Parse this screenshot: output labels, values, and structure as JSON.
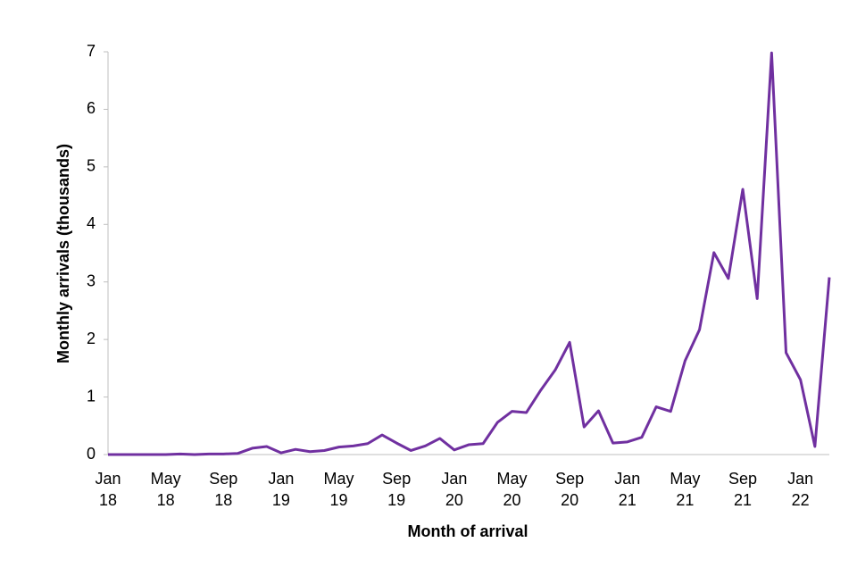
{
  "chart_data": {
    "type": "line",
    "x_label": "Month of arrival",
    "y_label": "Monthly arrivals (thousands)",
    "categories": [
      "Jan 18",
      null,
      null,
      null,
      "May 18",
      null,
      null,
      null,
      "Sep 18",
      null,
      null,
      null,
      "Jan 19",
      null,
      null,
      null,
      "May 19",
      null,
      null,
      null,
      "Sep 19",
      null,
      null,
      null,
      "Jan 20",
      null,
      null,
      null,
      "May 20",
      null,
      null,
      null,
      "Sep 20",
      null,
      null,
      null,
      "Jan 21",
      null,
      null,
      null,
      "May 21",
      null,
      null,
      null,
      "Sep 21",
      null,
      null,
      null,
      "Jan 22",
      null,
      null
    ],
    "series": [
      {
        "name": "Monthly arrivals",
        "color": "#7030a0",
        "values": [
          0,
          0,
          0,
          0,
          0,
          0.01,
          0,
          0.01,
          0.01,
          0.02,
          0.11,
          0.14,
          0.03,
          0.09,
          0.05,
          0.07,
          0.13,
          0.15,
          0.19,
          0.34,
          0.2,
          0.07,
          0.15,
          0.28,
          0.08,
          0.17,
          0.19,
          0.56,
          0.75,
          0.73,
          1.12,
          1.47,
          1.95,
          0.48,
          0.76,
          0.2,
          0.22,
          0.3,
          0.83,
          0.75,
          1.63,
          2.17,
          3.51,
          3.06,
          4.61,
          2.71,
          6.98,
          1.77,
          1.3,
          0.14,
          3.08
        ]
      }
    ],
    "ylim": [
      0,
      7
    ],
    "yticks": [
      0,
      1,
      2,
      3,
      4,
      5,
      6,
      7
    ],
    "grid": false
  }
}
